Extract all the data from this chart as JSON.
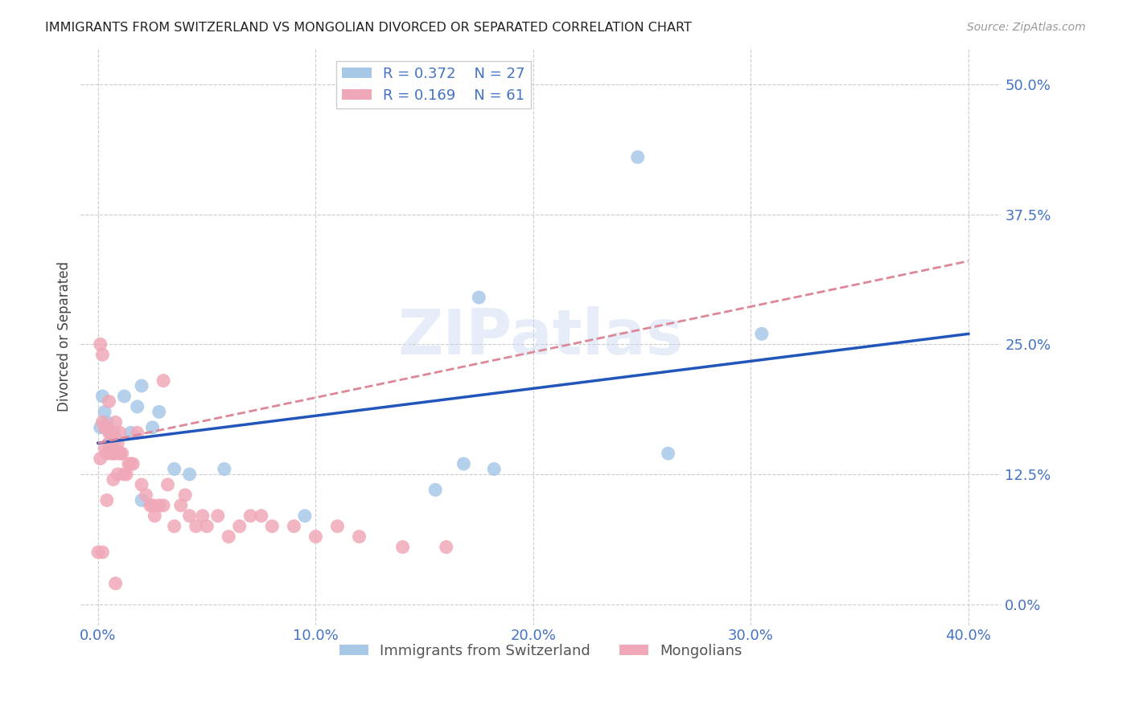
{
  "title": "IMMIGRANTS FROM SWITZERLAND VS MONGOLIAN DIVORCED OR SEPARATED CORRELATION CHART",
  "source": "Source: ZipAtlas.com",
  "xlabel_tick_vals": [
    0.0,
    0.1,
    0.2,
    0.3,
    0.4
  ],
  "ylabel_tick_vals": [
    0.0,
    0.125,
    0.25,
    0.375,
    0.5
  ],
  "xlim": [
    -0.008,
    0.415
  ],
  "ylim": [
    -0.02,
    0.535
  ],
  "ylabel": "Divorced or Separated",
  "legend_label1": "Immigrants from Switzerland",
  "legend_label2": "Mongolians",
  "R1": 0.372,
  "N1": 27,
  "R2": 0.169,
  "N2": 61,
  "color_swiss": "#a8c8e8",
  "color_mongol": "#f0a8b8",
  "trendline_swiss_color": "#2255bb",
  "trendline_mongol_color": "#dd8899",
  "swiss_x": [
    0.001,
    0.002,
    0.003,
    0.004,
    0.005,
    0.006,
    0.007,
    0.008,
    0.01,
    0.012,
    0.015,
    0.018,
    0.02,
    0.025,
    0.028,
    0.035,
    0.042,
    0.058,
    0.155,
    0.168,
    0.182,
    0.248,
    0.262,
    0.305,
    0.175,
    0.02,
    0.095
  ],
  "swiss_y": [
    0.17,
    0.2,
    0.185,
    0.175,
    0.155,
    0.165,
    0.15,
    0.16,
    0.145,
    0.2,
    0.165,
    0.19,
    0.21,
    0.17,
    0.185,
    0.13,
    0.125,
    0.13,
    0.11,
    0.135,
    0.13,
    0.43,
    0.145,
    0.26,
    0.295,
    0.1,
    0.085
  ],
  "mongol_x": [
    0.0,
    0.001,
    0.001,
    0.002,
    0.002,
    0.002,
    0.003,
    0.003,
    0.004,
    0.004,
    0.004,
    0.005,
    0.005,
    0.005,
    0.006,
    0.006,
    0.007,
    0.007,
    0.007,
    0.008,
    0.008,
    0.009,
    0.009,
    0.01,
    0.01,
    0.011,
    0.012,
    0.013,
    0.014,
    0.015,
    0.016,
    0.018,
    0.02,
    0.022,
    0.024,
    0.025,
    0.026,
    0.028,
    0.03,
    0.032,
    0.035,
    0.038,
    0.04,
    0.042,
    0.045,
    0.048,
    0.05,
    0.055,
    0.06,
    0.065,
    0.07,
    0.075,
    0.08,
    0.09,
    0.1,
    0.11,
    0.12,
    0.14,
    0.16,
    0.03,
    0.008
  ],
  "mongol_y": [
    0.05,
    0.14,
    0.25,
    0.24,
    0.175,
    0.05,
    0.17,
    0.15,
    0.17,
    0.145,
    0.1,
    0.155,
    0.165,
    0.195,
    0.165,
    0.145,
    0.165,
    0.145,
    0.12,
    0.175,
    0.145,
    0.155,
    0.125,
    0.165,
    0.145,
    0.145,
    0.125,
    0.125,
    0.135,
    0.135,
    0.135,
    0.165,
    0.115,
    0.105,
    0.095,
    0.095,
    0.085,
    0.095,
    0.095,
    0.115,
    0.075,
    0.095,
    0.105,
    0.085,
    0.075,
    0.085,
    0.075,
    0.085,
    0.065,
    0.075,
    0.085,
    0.085,
    0.075,
    0.075,
    0.065,
    0.075,
    0.065,
    0.055,
    0.055,
    0.215,
    0.02
  ]
}
